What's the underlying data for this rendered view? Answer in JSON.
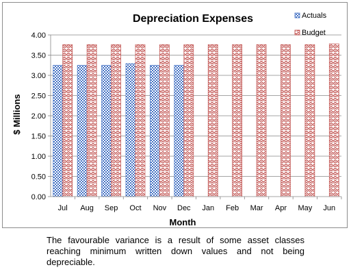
{
  "chart_data": {
    "type": "bar",
    "title": "Depreciation Expenses",
    "xlabel": "Month",
    "ylabel": "$ Millions",
    "categories": [
      "Jul",
      "Aug",
      "Sep",
      "Oct",
      "Nov",
      "Dec",
      "Jan",
      "Feb",
      "Mar",
      "Apr",
      "May",
      "Jun"
    ],
    "series": [
      {
        "name": "Actuals",
        "color": "#4472c4",
        "pattern": "checkerboard",
        "values": [
          3.25,
          3.25,
          3.25,
          3.29,
          3.25,
          3.25,
          null,
          null,
          null,
          null,
          null,
          null
        ]
      },
      {
        "name": "Budget",
        "color": "#c0504d",
        "pattern": "zigzag",
        "values": [
          3.76,
          3.76,
          3.76,
          3.76,
          3.76,
          3.76,
          3.76,
          3.76,
          3.76,
          3.76,
          3.76,
          3.78
        ]
      }
    ],
    "ylim": [
      0,
      4
    ],
    "yticks": [
      "0.00",
      "0.50",
      "1.00",
      "1.50",
      "2.00",
      "2.50",
      "3.00",
      "3.50",
      "4.00"
    ],
    "grid": true,
    "legend_position": "top-right"
  },
  "caption": "The favourable variance is a result of some asset classes reaching minimum written down values and not being depreciable."
}
